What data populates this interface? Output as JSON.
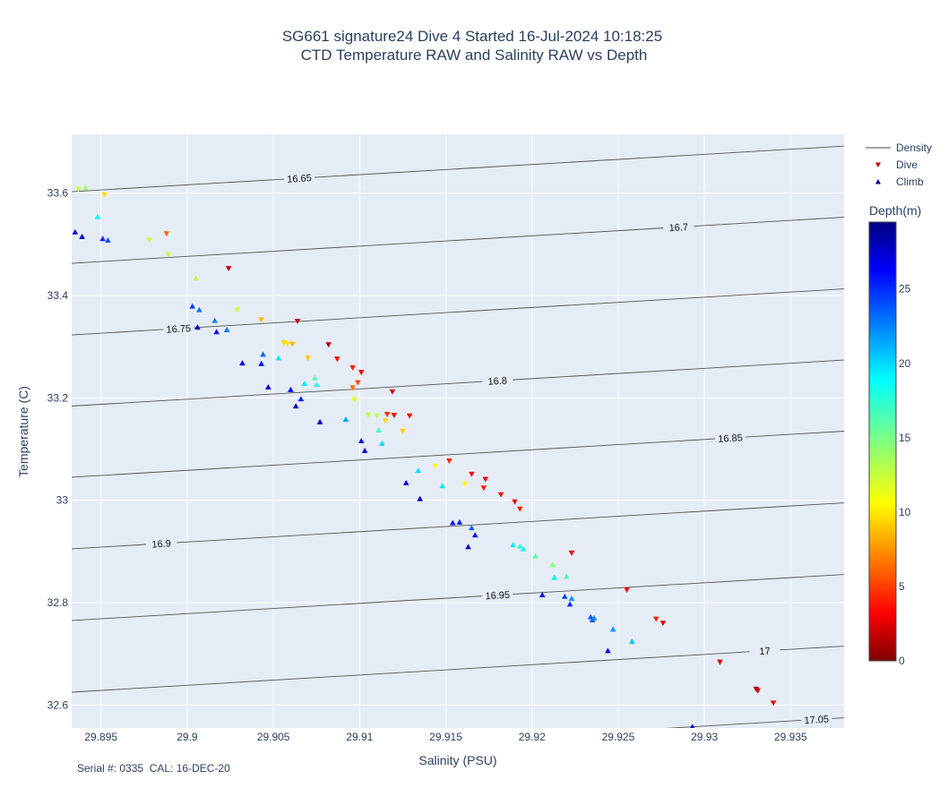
{
  "chart_data": {
    "type": "scatter",
    "title": "SG661 signature24 Dive 4 Started 16-Jul-2024 10:18:25",
    "subtitle": "CTD Temperature RAW and Salinity RAW vs Depth",
    "xlabel": "Salinity (PSU)",
    "ylabel": "Temperature (C)",
    "xlim": [
      29.8933,
      29.9381
    ],
    "ylim": [
      32.555,
      33.715
    ],
    "x_ticks": [
      29.895,
      29.9,
      29.905,
      29.91,
      29.915,
      29.92,
      29.925,
      29.93,
      29.935
    ],
    "x_tick_labels": [
      "29.895",
      "29.9",
      "29.905",
      "29.91",
      "29.915",
      "29.92",
      "29.925",
      "29.93",
      "29.935"
    ],
    "y_ticks": [
      32.6,
      32.8,
      33.0,
      33.2,
      33.4,
      33.6
    ],
    "y_tick_labels": [
      "32.6",
      "32.8",
      "33",
      "33.2",
      "33.4",
      "33.6"
    ],
    "grid": true,
    "legend": {
      "placement": "top-right",
      "entries": [
        {
          "name": "Density",
          "symbol": "line",
          "color": "#444444"
        },
        {
          "name": "Dive",
          "symbol": "triangle-down",
          "color": "#c00000"
        },
        {
          "name": "Climb",
          "symbol": "triangle-up",
          "color": "#00008f"
        }
      ]
    },
    "colorbar": {
      "title": "Depth(m)",
      "range": [
        0,
        29.5
      ],
      "ticks": [
        0,
        5,
        10,
        15,
        20,
        25
      ],
      "tick_labels": [
        "0",
        "5",
        "10",
        "15",
        "20",
        "25"
      ],
      "colorscale": "jet_reversed"
    },
    "density_contours": [
      {
        "label": "16.65",
        "y_left": 33.603,
        "y_right": 33.692,
        "label_x": 29.9065
      },
      {
        "label": "16.7",
        "y_left": 33.463,
        "y_right": 33.553,
        "label_x": 29.9285
      },
      {
        "label": "16.75",
        "y_left": 33.323,
        "y_right": 33.413,
        "label_x": 29.8995
      },
      {
        "label": "16.8",
        "y_left": 33.184,
        "y_right": 33.274,
        "label_x": 29.918
      },
      {
        "label": "16.85",
        "y_left": 33.045,
        "y_right": 33.135,
        "label_x": 29.9315
      },
      {
        "label": "16.9",
        "y_left": 32.905,
        "y_right": 32.995,
        "label_x": 29.8985
      },
      {
        "label": "16.95",
        "y_left": 32.765,
        "y_right": 32.855,
        "label_x": 29.918
      },
      {
        "label": "17",
        "y_left": 32.625,
        "y_right": 32.715,
        "label_x": 29.9335
      },
      {
        "label": "17.05",
        "y_left": 32.485,
        "y_right": 32.575,
        "label_x": 29.9365
      }
    ],
    "series": [
      {
        "name": "Dive",
        "marker": "triangle-down",
        "points": [
          {
            "x": 29.8937,
            "y": 33.608,
            "depth": 12.5
          },
          {
            "x": 29.8952,
            "y": 33.597,
            "depth": 10.0
          },
          {
            "x": 29.8978,
            "y": 33.509,
            "depth": 12.8
          },
          {
            "x": 29.8988,
            "y": 33.521,
            "depth": 6.5
          },
          {
            "x": 29.8989,
            "y": 33.48,
            "depth": 12.8
          },
          {
            "x": 29.9024,
            "y": 33.453,
            "depth": 2.0
          },
          {
            "x": 29.9029,
            "y": 33.372,
            "depth": 12.5
          },
          {
            "x": 29.9043,
            "y": 33.353,
            "depth": 9.0
          },
          {
            "x": 29.9056,
            "y": 33.308,
            "depth": 9.8
          },
          {
            "x": 29.9058,
            "y": 33.306,
            "depth": 10.3
          },
          {
            "x": 29.9061,
            "y": 33.305,
            "depth": 9.0
          },
          {
            "x": 29.9064,
            "y": 33.35,
            "depth": 1.8
          },
          {
            "x": 29.907,
            "y": 33.278,
            "depth": 9.5
          },
          {
            "x": 29.9082,
            "y": 33.304,
            "depth": 1.5
          },
          {
            "x": 29.9087,
            "y": 33.276,
            "depth": 4.0
          },
          {
            "x": 29.9096,
            "y": 33.259,
            "depth": 4.5
          },
          {
            "x": 29.9096,
            "y": 33.22,
            "depth": 7.0
          },
          {
            "x": 29.9097,
            "y": 33.196,
            "depth": 12.0
          },
          {
            "x": 29.9099,
            "y": 33.23,
            "depth": 5.5
          },
          {
            "x": 29.9101,
            "y": 33.25,
            "depth": 3.0
          },
          {
            "x": 29.9105,
            "y": 33.167,
            "depth": 13.0
          },
          {
            "x": 29.911,
            "y": 33.165,
            "depth": 13.0
          },
          {
            "x": 29.9115,
            "y": 33.155,
            "depth": 10.0
          },
          {
            "x": 29.9116,
            "y": 33.168,
            "depth": 5.0
          },
          {
            "x": 29.9119,
            "y": 33.212,
            "depth": 2.5
          },
          {
            "x": 29.912,
            "y": 33.166,
            "depth": 4.0
          },
          {
            "x": 29.9125,
            "y": 33.135,
            "depth": 9.5
          },
          {
            "x": 29.9129,
            "y": 33.165,
            "depth": 3.5
          },
          {
            "x": 29.9144,
            "y": 33.067,
            "depth": 11.0
          },
          {
            "x": 29.9152,
            "y": 33.077,
            "depth": 4.5
          },
          {
            "x": 29.9161,
            "y": 33.032,
            "depth": 11.0
          },
          {
            "x": 29.9165,
            "y": 33.051,
            "depth": 3.5
          },
          {
            "x": 29.9172,
            "y": 33.024,
            "depth": 4.5
          },
          {
            "x": 29.9173,
            "y": 33.041,
            "depth": 3.0
          },
          {
            "x": 29.9182,
            "y": 33.011,
            "depth": 3.0
          },
          {
            "x": 29.919,
            "y": 32.997,
            "depth": 3.5
          },
          {
            "x": 29.9193,
            "y": 32.983,
            "depth": 4.5
          },
          {
            "x": 29.9223,
            "y": 32.897,
            "depth": 3.5
          },
          {
            "x": 29.9255,
            "y": 32.825,
            "depth": 3.5
          },
          {
            "x": 29.9272,
            "y": 32.768,
            "depth": 4.5
          },
          {
            "x": 29.9276,
            "y": 32.76,
            "depth": 3.0
          },
          {
            "x": 29.9309,
            "y": 32.684,
            "depth": 2.5
          },
          {
            "x": 29.933,
            "y": 32.631,
            "depth": 1.5
          },
          {
            "x": 29.9331,
            "y": 32.628,
            "depth": 2.0
          },
          {
            "x": 29.934,
            "y": 32.604,
            "depth": 3.0
          }
        ]
      },
      {
        "name": "Climb",
        "marker": "triangle-up",
        "points": [
          {
            "x": 29.8941,
            "y": 33.61,
            "depth": 14.0
          },
          {
            "x": 29.8935,
            "y": 33.524,
            "depth": 27.0
          },
          {
            "x": 29.8939,
            "y": 33.515,
            "depth": 27.5
          },
          {
            "x": 29.8948,
            "y": 33.554,
            "depth": 18.5
          },
          {
            "x": 29.8951,
            "y": 33.511,
            "depth": 24.5
          },
          {
            "x": 29.8954,
            "y": 33.508,
            "depth": 23.5
          },
          {
            "x": 29.9005,
            "y": 33.434,
            "depth": 13.0
          },
          {
            "x": 29.9003,
            "y": 33.379,
            "depth": 24.0
          },
          {
            "x": 29.9006,
            "y": 33.338,
            "depth": 27.5
          },
          {
            "x": 29.9007,
            "y": 33.372,
            "depth": 22.5
          },
          {
            "x": 29.9016,
            "y": 33.351,
            "depth": 22.0
          },
          {
            "x": 29.9017,
            "y": 33.329,
            "depth": 26.0
          },
          {
            "x": 29.9023,
            "y": 33.333,
            "depth": 22.5
          },
          {
            "x": 29.9032,
            "y": 33.268,
            "depth": 27.0
          },
          {
            "x": 29.9043,
            "y": 33.267,
            "depth": 25.5
          },
          {
            "x": 29.9044,
            "y": 33.285,
            "depth": 23.0
          },
          {
            "x": 29.9047,
            "y": 33.221,
            "depth": 27.0
          },
          {
            "x": 29.9053,
            "y": 33.278,
            "depth": 19.0
          },
          {
            "x": 29.906,
            "y": 33.216,
            "depth": 26.0
          },
          {
            "x": 29.9063,
            "y": 33.184,
            "depth": 27.5
          },
          {
            "x": 29.9066,
            "y": 33.198,
            "depth": 25.0
          },
          {
            "x": 29.9068,
            "y": 33.228,
            "depth": 19.0
          },
          {
            "x": 29.9074,
            "y": 33.239,
            "depth": 16.0
          },
          {
            "x": 29.9075,
            "y": 33.226,
            "depth": 17.5
          },
          {
            "x": 29.9077,
            "y": 33.153,
            "depth": 27.5
          },
          {
            "x": 29.9092,
            "y": 33.158,
            "depth": 21.0
          },
          {
            "x": 29.9101,
            "y": 33.116,
            "depth": 27.0
          },
          {
            "x": 29.9103,
            "y": 33.097,
            "depth": 27.0
          },
          {
            "x": 29.9111,
            "y": 33.137,
            "depth": 16.5
          },
          {
            "x": 29.9113,
            "y": 33.111,
            "depth": 19.5
          },
          {
            "x": 29.9127,
            "y": 33.034,
            "depth": 26.0
          },
          {
            "x": 29.9134,
            "y": 33.058,
            "depth": 19.5
          },
          {
            "x": 29.9135,
            "y": 33.003,
            "depth": 27.0
          },
          {
            "x": 29.9148,
            "y": 33.028,
            "depth": 19.0
          },
          {
            "x": 29.9154,
            "y": 32.956,
            "depth": 25.5
          },
          {
            "x": 29.9158,
            "y": 32.957,
            "depth": 25.0
          },
          {
            "x": 29.9163,
            "y": 32.909,
            "depth": 27.0
          },
          {
            "x": 29.9165,
            "y": 32.946,
            "depth": 23.0
          },
          {
            "x": 29.9167,
            "y": 32.932,
            "depth": 25.5
          },
          {
            "x": 29.9189,
            "y": 32.913,
            "depth": 19.0
          },
          {
            "x": 29.9193,
            "y": 32.91,
            "depth": 17.0
          },
          {
            "x": 29.9195,
            "y": 32.905,
            "depth": 18.0
          },
          {
            "x": 29.9202,
            "y": 32.891,
            "depth": 16.0
          },
          {
            "x": 29.9206,
            "y": 32.815,
            "depth": 26.0
          },
          {
            "x": 29.9212,
            "y": 32.874,
            "depth": 14.5
          },
          {
            "x": 29.9213,
            "y": 32.849,
            "depth": 19.0
          },
          {
            "x": 29.9219,
            "y": 32.812,
            "depth": 24.0
          },
          {
            "x": 29.922,
            "y": 32.851,
            "depth": 16.0
          },
          {
            "x": 29.9222,
            "y": 32.797,
            "depth": 24.5
          },
          {
            "x": 29.9223,
            "y": 32.808,
            "depth": 21.5
          },
          {
            "x": 29.9234,
            "y": 32.772,
            "depth": 23.0
          },
          {
            "x": 29.9235,
            "y": 32.766,
            "depth": 23.5
          },
          {
            "x": 29.9236,
            "y": 32.77,
            "depth": 22.0
          },
          {
            "x": 29.9244,
            "y": 32.706,
            "depth": 26.5
          },
          {
            "x": 29.9247,
            "y": 32.748,
            "depth": 21.5
          },
          {
            "x": 29.9258,
            "y": 32.724,
            "depth": 20.0
          },
          {
            "x": 29.9293,
            "y": 32.557,
            "depth": 27.5
          }
        ]
      }
    ]
  },
  "footer": "Serial #: 0335  CAL: 16-DEC-20"
}
